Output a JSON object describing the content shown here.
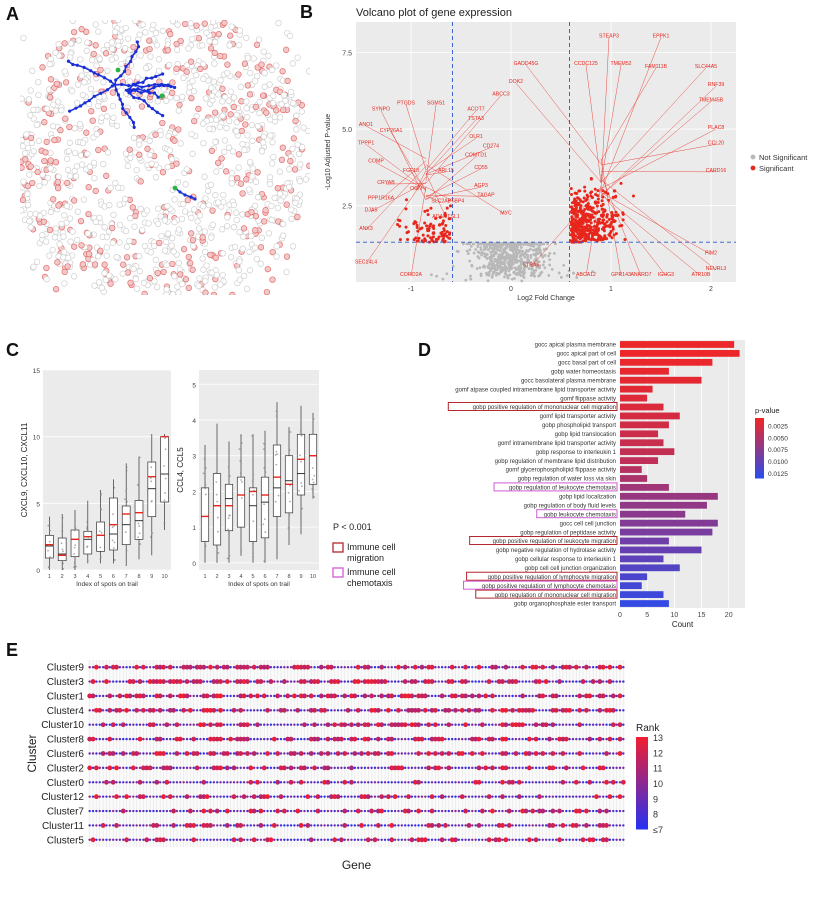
{
  "panels": {
    "a": "A",
    "b": "B",
    "c": "C",
    "d": "D",
    "e": "E"
  },
  "colors": {
    "tissue": "#cfcfcf",
    "spot_red": "#e56d6d",
    "trail": "#1b2fd6",
    "trail_end": "#2bb34a",
    "sig": "#e8261c",
    "nonsig": "#b8b8b8",
    "cutoff": "#2b58c9",
    "box_mean": "#e8261c",
    "migration_box": "#b3262b",
    "chemotaxis_box": "#d15bd1"
  },
  "chart_data": [
    {
      "id": "volcano",
      "type": "scatter",
      "title": "Volcano plot of gene expression",
      "xlabel": "Log2 Fold Change",
      "ylabel": "-Log10 Adjusted P-value",
      "xlim": [
        -1.55,
        2.25
      ],
      "ylim": [
        0,
        8.5
      ],
      "xticks": [
        "-1",
        "0",
        "1",
        "2"
      ],
      "xtick_values": [
        -1,
        0,
        1,
        2
      ],
      "yticks": [
        "2.5",
        "5.0",
        "7.5"
      ],
      "ytick_values": [
        2.5,
        5.0,
        7.5
      ],
      "cutoffs": {
        "x": [
          -0.585,
          0.585
        ],
        "y": 1.3
      },
      "legend": {
        "position": "right",
        "items": [
          "Not Significant",
          "Significant"
        ]
      },
      "gene_labels": [
        {
          "label": "STEAP3",
          "x": 0.98,
          "y": 8.0
        },
        {
          "label": "EPPK1",
          "x": 1.5,
          "y": 8.0
        },
        {
          "label": "GADD45G",
          "x": 0.15,
          "y": 7.1
        },
        {
          "label": "CCDC125",
          "x": 0.75,
          "y": 7.1
        },
        {
          "label": "TMEM52",
          "x": 1.1,
          "y": 7.1
        },
        {
          "label": "FAM111B",
          "x": 1.45,
          "y": 7.0
        },
        {
          "label": "SLC44A5",
          "x": 1.95,
          "y": 7.0
        },
        {
          "label": "DOK2",
          "x": 0.05,
          "y": 6.5
        },
        {
          "label": "RNF39",
          "x": 2.05,
          "y": 6.4
        },
        {
          "label": "ABCC3",
          "x": -0.1,
          "y": 6.1
        },
        {
          "label": "ACOT7",
          "x": -0.35,
          "y": 5.6
        },
        {
          "label": "TSTA3",
          "x": -0.35,
          "y": 5.3
        },
        {
          "label": "OLR1",
          "x": -0.35,
          "y": 4.7
        },
        {
          "label": "CD274",
          "x": -0.2,
          "y": 4.4
        },
        {
          "label": "COMTD1",
          "x": -0.35,
          "y": 4.1
        },
        {
          "label": "CD55",
          "x": -0.3,
          "y": 3.7
        },
        {
          "label": "AGP3",
          "x": -0.3,
          "y": 3.1
        },
        {
          "label": "TAGAP",
          "x": -0.25,
          "y": 2.8
        },
        {
          "label": "MYC",
          "x": -0.05,
          "y": 2.2
        },
        {
          "label": "STRA6",
          "x": 0.2,
          "y": 0.5
        },
        {
          "label": "ABCA12",
          "x": 0.75,
          "y": 0.2
        },
        {
          "label": "GPR143",
          "x": 1.1,
          "y": 0.2
        },
        {
          "label": "ANKRD7",
          "x": 1.3,
          "y": 0.2
        },
        {
          "label": "IGHG3",
          "x": 1.55,
          "y": 0.2
        },
        {
          "label": "ATP10B",
          "x": 1.9,
          "y": 0.2
        },
        {
          "label": "ANO1",
          "x": -1.45,
          "y": 5.1
        },
        {
          "label": "TPPP1",
          "x": -1.45,
          "y": 4.5
        },
        {
          "label": "SYNPO",
          "x": -1.3,
          "y": 5.6
        },
        {
          "label": "PTGDS",
          "x": -1.05,
          "y": 5.8
        },
        {
          "label": "SGMS1",
          "x": -0.75,
          "y": 5.8
        },
        {
          "label": "CYP26A1",
          "x": -1.2,
          "y": 4.9
        },
        {
          "label": "COMP",
          "x": -1.35,
          "y": 3.9
        },
        {
          "label": "CRYAB",
          "x": -1.25,
          "y": 3.2
        },
        {
          "label": "PPP1R16A",
          "x": -1.3,
          "y": 2.7
        },
        {
          "label": "DJA5",
          "x": -1.4,
          "y": 2.3
        },
        {
          "label": "ANK3",
          "x": -1.45,
          "y": 1.7
        },
        {
          "label": "SEC14L4",
          "x": -1.45,
          "y": 0.6
        },
        {
          "label": "CORO2A",
          "x": -1.0,
          "y": 0.2
        },
        {
          "label": "FGF18",
          "x": -1.0,
          "y": 3.6
        },
        {
          "label": "ARL15",
          "x": -0.65,
          "y": 3.6
        },
        {
          "label": "OGN",
          "x": -0.95,
          "y": 3.0
        },
        {
          "label": "SLC2A5",
          "x": -0.7,
          "y": 2.6
        },
        {
          "label": "PTBP4",
          "x": -0.55,
          "y": 2.6
        },
        {
          "label": "ADAMTSL1",
          "x": -0.65,
          "y": 2.1
        },
        {
          "label": "PIM2",
          "x": 2.0,
          "y": 0.9
        },
        {
          "label": "NEURL3",
          "x": 2.05,
          "y": 0.4
        },
        {
          "label": "CARD16",
          "x": 2.05,
          "y": 3.6
        },
        {
          "label": "CCL20",
          "x": 2.05,
          "y": 4.5
        },
        {
          "label": "PLAC8",
          "x": 2.05,
          "y": 5.0
        },
        {
          "label": "TMEM45B",
          "x": 2.0,
          "y": 5.9
        }
      ],
      "significant_count": 520,
      "nonsignificant_count": 680
    },
    {
      "id": "boxplot-cxcl9",
      "type": "box",
      "ylabel": "CXCL9, CXCL10, CXCL11",
      "xlabel": "Index of spots on trail",
      "categories": [
        "1",
        "2",
        "3",
        "4",
        "5",
        "6",
        "7",
        "8",
        "9",
        "10"
      ],
      "ylim": [
        0,
        15
      ],
      "yticks": [
        "0",
        "5",
        "10",
        "15"
      ],
      "ytick_values": [
        0,
        5,
        10,
        15
      ],
      "boxes": [
        {
          "q1": 0.9,
          "median": 1.8,
          "q3": 2.6,
          "min": 0.0,
          "max": 4.0,
          "mean": 1.9
        },
        {
          "q1": 0.7,
          "median": 1.2,
          "q3": 2.4,
          "min": 0.0,
          "max": 4.2,
          "mean": 1.1
        },
        {
          "q1": 1.0,
          "median": 2.3,
          "q3": 3.0,
          "min": 0.0,
          "max": 4.5,
          "mean": 2.3
        },
        {
          "q1": 1.2,
          "median": 2.3,
          "q3": 2.9,
          "min": 0.5,
          "max": 5.2,
          "mean": 2.5
        },
        {
          "q1": 1.4,
          "median": 2.6,
          "q3": 3.6,
          "min": 0.5,
          "max": 6.0,
          "mean": 2.6
        },
        {
          "q1": 1.5,
          "median": 2.7,
          "q3": 5.4,
          "min": 0.5,
          "max": 6.8,
          "mean": 3.4
        },
        {
          "q1": 1.9,
          "median": 3.4,
          "q3": 4.8,
          "min": 0.3,
          "max": 8.0,
          "mean": 4.2
        },
        {
          "q1": 2.3,
          "median": 3.7,
          "q3": 5.2,
          "min": 0.8,
          "max": 8.5,
          "mean": 4.3
        },
        {
          "q1": 4.0,
          "median": 6.1,
          "q3": 8.1,
          "min": 1.1,
          "max": 10.2,
          "mean": 7.0
        },
        {
          "q1": 5.1,
          "median": 7.2,
          "q3": 10.0,
          "min": 3.0,
          "max": 10.2,
          "mean": 10.0
        }
      ]
    },
    {
      "id": "boxplot-ccl4",
      "type": "box",
      "ylabel": "CCL4, CCL5",
      "xlabel": "Index of spots on trail",
      "categories": [
        "1",
        "2",
        "3",
        "4",
        "5",
        "6",
        "7",
        "8",
        "9",
        "10"
      ],
      "ylim": [
        -0.2,
        5.4
      ],
      "yticks": [
        "0",
        "1",
        "2",
        "3",
        "4",
        "5"
      ],
      "ytick_values": [
        0,
        1,
        2,
        3,
        4,
        5
      ],
      "boxes": [
        {
          "q1": 0.6,
          "median": 1.3,
          "q3": 2.1,
          "min": 0.0,
          "max": 3.3,
          "mean": 1.3
        },
        {
          "q1": 0.5,
          "median": 1.6,
          "q3": 2.5,
          "min": 0.0,
          "max": 3.9,
          "mean": 1.6
        },
        {
          "q1": 0.9,
          "median": 1.8,
          "q3": 2.2,
          "min": 0.0,
          "max": 3.4,
          "mean": 1.6
        },
        {
          "q1": 1.0,
          "median": 1.9,
          "q3": 2.4,
          "min": 0.2,
          "max": 3.6,
          "mean": 1.9
        },
        {
          "q1": 0.6,
          "median": 1.6,
          "q3": 2.1,
          "min": 0.0,
          "max": 3.6,
          "mean": 2.0
        },
        {
          "q1": 0.7,
          "median": 1.7,
          "q3": 2.4,
          "min": 0.0,
          "max": 3.7,
          "mean": 1.9
        },
        {
          "q1": 1.3,
          "median": 2.1,
          "q3": 3.3,
          "min": 0.1,
          "max": 4.5,
          "mean": 2.4
        },
        {
          "q1": 1.4,
          "median": 2.3,
          "q3": 3.0,
          "min": 0.5,
          "max": 3.8,
          "mean": 2.2
        },
        {
          "q1": 1.9,
          "median": 2.5,
          "q3": 3.6,
          "min": 0.8,
          "max": 4.4,
          "mean": 2.9
        },
        {
          "q1": 2.2,
          "median": 3.0,
          "q3": 3.6,
          "min": 1.8,
          "max": 4.2,
          "mean": 3.0
        }
      ]
    },
    {
      "id": "go-bar",
      "type": "bar",
      "orientation": "horizontal",
      "xlabel": "Count",
      "xlim": [
        0,
        23
      ],
      "xticks": [
        "0",
        "5",
        "10",
        "15",
        "20"
      ],
      "xtick_values": [
        0,
        5,
        10,
        15,
        20
      ],
      "legend": {
        "title": "p-value",
        "labels": [
          "0.0025",
          "0.0050",
          "0.0075",
          "0.0100",
          "0.0125"
        ],
        "values": [
          0.0025,
          0.005,
          0.0075,
          0.01,
          0.0125
        ],
        "range": [
          0.0008,
          0.0135
        ]
      },
      "categories": [
        "gocc apical plasma membrane",
        "gocc apical part of cell",
        "gocc basal part of cell",
        "gobp water homeostasis",
        "gocc basolateral plasma membrane",
        "gomf atpase coupled intramembrane lipid transporter activity",
        "gomf flippase activity",
        "gobp positive regulation of mononuclear cell migration",
        "gomf lipid transporter activity",
        "gobp phospholipid transport",
        "gobp lipid translocation",
        "gomf intramembrane lipid transporter activity",
        "gobp response to interleukin 1",
        "gobp regulation of membrane lipid distribution",
        "gomf glycerophospholipid flippase activity",
        "gobp regulation of water loss via skin",
        "gobp regulation of leukocyte chemotaxis",
        "gobp lipid localization",
        "gobp regulation of body fluid levels",
        "gobp leukocyte chemotaxis",
        "gocc cell cell junction",
        "gobp regulation of peptidase activity",
        "gobp positive regulation of leukocyte migration",
        "gobp negative regulation of hydrolase activity",
        "gobp cellular response to interleukin 1",
        "gobp cell cell junction organization",
        "gobp positive regulation of lymphocyte migration",
        "gobp positive regulation of lymphocyte chemotaxis",
        "gobp regulation of mononuclear cell migration",
        "gobp organophosphate ester transport"
      ],
      "values": [
        21,
        22,
        17,
        9,
        15,
        6,
        5,
        8,
        11,
        9,
        7,
        8,
        10,
        7,
        4,
        5,
        9,
        18,
        16,
        12,
        18,
        17,
        9,
        15,
        8,
        11,
        5,
        4,
        8,
        9
      ],
      "pvalues": [
        0.001,
        0.001,
        0.0012,
        0.0014,
        0.0016,
        0.0018,
        0.002,
        0.0022,
        0.0026,
        0.0028,
        0.0032,
        0.0034,
        0.0037,
        0.004,
        0.0046,
        0.0052,
        0.006,
        0.0066,
        0.007,
        0.0074,
        0.008,
        0.0086,
        0.0092,
        0.0098,
        0.0104,
        0.011,
        0.0116,
        0.012,
        0.0124,
        0.013
      ],
      "highlight_migration": [
        7,
        22,
        26,
        28
      ],
      "highlight_chemotaxis": [
        16,
        19,
        27
      ]
    },
    {
      "id": "rank-dots",
      "type": "scatter",
      "xlabel": "Gene",
      "ylabel": "Cluster",
      "categories": [
        "Cluster9",
        "Cluster3",
        "Cluster1",
        "Cluster4",
        "Cluster10",
        "Cluster8",
        "Cluster6",
        "Cluster2",
        "Cluster0",
        "Cluster12",
        "Cluster7",
        "Cluster11",
        "Cluster5"
      ],
      "gene_count": 160,
      "legend": {
        "title": "Rank",
        "labels": [
          "13",
          "12",
          "11",
          "10",
          "9",
          "8",
          "≤7"
        ],
        "values": [
          13,
          12,
          11,
          10,
          9,
          8,
          7
        ]
      }
    }
  ],
  "annotation": {
    "pvalue_text": "P < 0.001",
    "legend_migration": "Immune cell\nmigration",
    "legend_chemotaxis": "Immune cell\nchemotaxis"
  }
}
